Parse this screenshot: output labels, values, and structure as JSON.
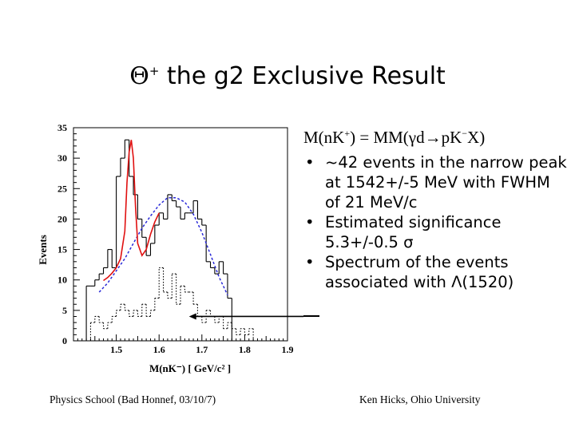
{
  "title": {
    "symbol": "Θ",
    "charge": "+",
    "text": " the g2 Exclusive Result"
  },
  "formula": {
    "prefix": "M(nK",
    "sup1": "+",
    "middle": ") = MM(γd",
    "arrow": "→",
    "after": "pK",
    "sup2": "−",
    "suffix": "X)"
  },
  "bullets": [
    {
      "text": "~42 events in the narrow peak at 1542+/-5 MeV with FWHM of 21 MeV/c"
    },
    {
      "text": "Estimated significance 5.3+/-0.5 σ"
    },
    {
      "text": "Spectrum of the events associated with Λ(1520)"
    }
  ],
  "footer": {
    "left": "Physics School (Bad Honnef, 03/10/7)",
    "right": "Ken Hicks, Ohio University"
  },
  "chart_data": {
    "type": "bar",
    "xlabel": "M(nK⁻) [ GeV/c² ]",
    "ylabel": "Events",
    "xlim": [
      1.4,
      1.9
    ],
    "ylim": [
      0,
      35
    ],
    "x_ticks": [
      "1.5",
      "1.6",
      "1.7",
      "1.8",
      "1.9"
    ],
    "y_ticks": [
      "0",
      "5",
      "10",
      "15",
      "20",
      "25",
      "30",
      "35"
    ],
    "bin_width": 0.01,
    "series": [
      {
        "style": "solid",
        "bin_starts": [
          1.43,
          1.44,
          1.45,
          1.46,
          1.47,
          1.48,
          1.49,
          1.5,
          1.51,
          1.52,
          1.53,
          1.54,
          1.55,
          1.56,
          1.57,
          1.58,
          1.59,
          1.6,
          1.61,
          1.62,
          1.63,
          1.64,
          1.65,
          1.66,
          1.67,
          1.68,
          1.69,
          1.7,
          1.71,
          1.72,
          1.73,
          1.74,
          1.75,
          1.76
        ],
        "values": [
          9,
          9,
          10,
          11,
          12,
          15,
          12,
          27,
          30,
          33,
          27,
          24,
          20,
          17,
          14,
          16,
          19,
          21,
          20,
          24,
          23,
          22,
          20,
          21,
          21,
          23,
          20,
          19,
          13,
          12,
          11,
          13,
          11,
          7
        ]
      },
      {
        "style": "dotted",
        "bin_starts": [
          1.44,
          1.45,
          1.46,
          1.47,
          1.48,
          1.49,
          1.5,
          1.51,
          1.52,
          1.53,
          1.54,
          1.55,
          1.56,
          1.57,
          1.58,
          1.59,
          1.6,
          1.61,
          1.62,
          1.63,
          1.64,
          1.65,
          1.66,
          1.67,
          1.68,
          1.69,
          1.7,
          1.71,
          1.72,
          1.73,
          1.74,
          1.75,
          1.76,
          1.77,
          1.78,
          1.79,
          1.8,
          1.81
        ],
        "values": [
          3,
          4,
          3,
          2,
          3,
          4,
          5,
          6,
          5,
          4,
          5,
          4,
          6,
          4,
          5,
          7,
          12,
          8,
          7,
          11,
          6,
          9,
          8,
          8,
          6,
          4,
          3,
          5,
          4,
          3,
          4,
          2,
          3,
          2,
          1,
          2,
          1,
          2
        ]
      }
    ],
    "fit_line": {
      "style": "dashed",
      "x": [
        1.46,
        1.48,
        1.5,
        1.52,
        1.54,
        1.56,
        1.58,
        1.6,
        1.62,
        1.64,
        1.66,
        1.68,
        1.7,
        1.72,
        1.74,
        1.76
      ],
      "y": [
        8,
        9.5,
        11.5,
        13.5,
        16,
        18.5,
        20.5,
        22.3,
        23.5,
        23.5,
        22.8,
        20.8,
        17.8,
        14.2,
        10.5,
        7.5
      ]
    },
    "fit_peak": {
      "style": "solid",
      "x": [
        1.47,
        1.48,
        1.49,
        1.5,
        1.51,
        1.52,
        1.525,
        1.53,
        1.535,
        1.54,
        1.545,
        1.55,
        1.56,
        1.57,
        1.58,
        1.59,
        1.6
      ],
      "y": [
        9.9,
        10.4,
        11.1,
        12,
        13.5,
        18,
        26,
        31,
        33,
        30,
        22,
        16,
        14,
        15,
        17.5,
        19.5,
        21
      ]
    },
    "arrow_to": [
      1.67,
      4
    ]
  }
}
